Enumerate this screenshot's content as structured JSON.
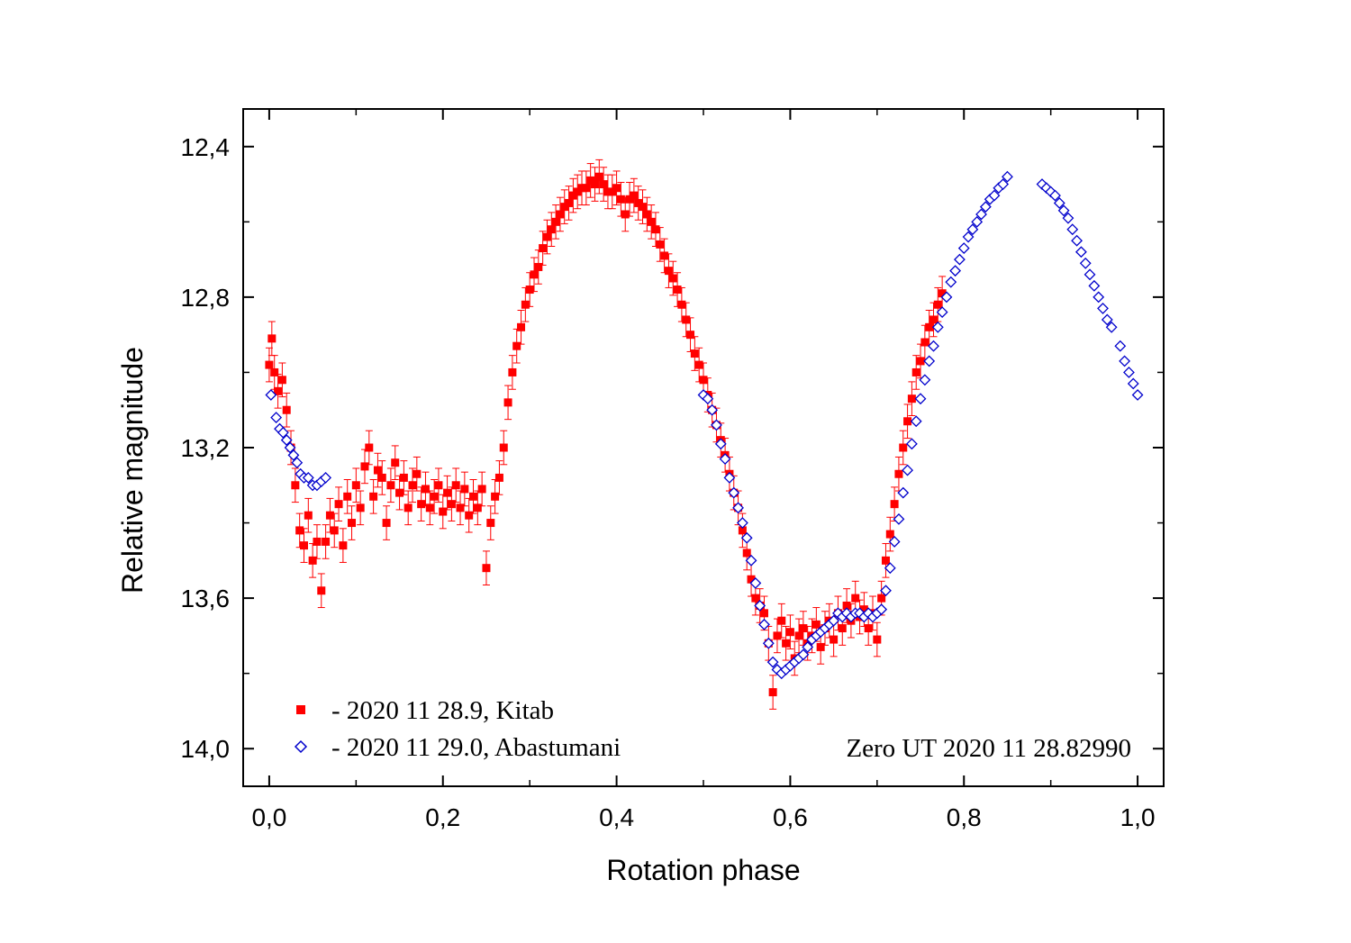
{
  "chart_data": {
    "type": "scatter",
    "xlabel": "Rotation phase",
    "ylabel": "Relative magnitude",
    "xlim": [
      -0.03,
      1.03
    ],
    "ylim": [
      14.1,
      12.3
    ],
    "y_inverted": true,
    "x_ticks": [
      0.0,
      0.2,
      0.4,
      0.6,
      0.8,
      1.0
    ],
    "x_tick_labels": [
      "0,0",
      "0,2",
      "0,4",
      "0,6",
      "0,8",
      "1,0"
    ],
    "y_ticks": [
      12.4,
      12.8,
      13.2,
      13.6,
      14.0
    ],
    "y_tick_labels": [
      "12,4",
      "12,8",
      "13,2",
      "13,6",
      "14,0"
    ],
    "annotation": "Zero UT 2020 11 28.82990",
    "legend_position": "bottom-left",
    "series": [
      {
        "name": "- 2020 11 28.9, Kitab",
        "marker": "filled-square",
        "color": "#ff0000",
        "error_bars": true,
        "points": [
          [
            0.0,
            12.98
          ],
          [
            0.003,
            12.91
          ],
          [
            0.006,
            13.0
          ],
          [
            0.01,
            13.05
          ],
          [
            0.015,
            13.02
          ],
          [
            0.02,
            13.1
          ],
          [
            0.025,
            13.2
          ],
          [
            0.03,
            13.3
          ],
          [
            0.035,
            13.42
          ],
          [
            0.04,
            13.46
          ],
          [
            0.045,
            13.38
          ],
          [
            0.05,
            13.5
          ],
          [
            0.055,
            13.45
          ],
          [
            0.06,
            13.58
          ],
          [
            0.065,
            13.45
          ],
          [
            0.07,
            13.38
          ],
          [
            0.075,
            13.42
          ],
          [
            0.08,
            13.35
          ],
          [
            0.085,
            13.46
          ],
          [
            0.09,
            13.33
          ],
          [
            0.095,
            13.4
          ],
          [
            0.1,
            13.3
          ],
          [
            0.105,
            13.36
          ],
          [
            0.11,
            13.25
          ],
          [
            0.115,
            13.2
          ],
          [
            0.12,
            13.33
          ],
          [
            0.125,
            13.26
          ],
          [
            0.13,
            13.28
          ],
          [
            0.135,
            13.4
          ],
          [
            0.14,
            13.3
          ],
          [
            0.145,
            13.24
          ],
          [
            0.15,
            13.32
          ],
          [
            0.155,
            13.28
          ],
          [
            0.16,
            13.36
          ],
          [
            0.165,
            13.3
          ],
          [
            0.17,
            13.27
          ],
          [
            0.175,
            13.35
          ],
          [
            0.18,
            13.31
          ],
          [
            0.185,
            13.36
          ],
          [
            0.19,
            13.33
          ],
          [
            0.195,
            13.3
          ],
          [
            0.2,
            13.37
          ],
          [
            0.205,
            13.32
          ],
          [
            0.21,
            13.35
          ],
          [
            0.215,
            13.3
          ],
          [
            0.22,
            13.36
          ],
          [
            0.225,
            13.31
          ],
          [
            0.23,
            13.38
          ],
          [
            0.235,
            13.33
          ],
          [
            0.24,
            13.36
          ],
          [
            0.245,
            13.31
          ],
          [
            0.25,
            13.52
          ],
          [
            0.255,
            13.4
          ],
          [
            0.26,
            13.33
          ],
          [
            0.265,
            13.28
          ],
          [
            0.27,
            13.2
          ],
          [
            0.275,
            13.08
          ],
          [
            0.28,
            13.0
          ],
          [
            0.285,
            12.93
          ],
          [
            0.29,
            12.88
          ],
          [
            0.295,
            12.82
          ],
          [
            0.3,
            12.78
          ],
          [
            0.305,
            12.74
          ],
          [
            0.31,
            12.72
          ],
          [
            0.315,
            12.67
          ],
          [
            0.32,
            12.64
          ],
          [
            0.325,
            12.62
          ],
          [
            0.33,
            12.6
          ],
          [
            0.335,
            12.58
          ],
          [
            0.34,
            12.56
          ],
          [
            0.345,
            12.55
          ],
          [
            0.35,
            12.53
          ],
          [
            0.355,
            12.52
          ],
          [
            0.36,
            12.51
          ],
          [
            0.365,
            12.51
          ],
          [
            0.37,
            12.49
          ],
          [
            0.375,
            12.5
          ],
          [
            0.38,
            12.48
          ],
          [
            0.385,
            12.5
          ],
          [
            0.39,
            12.52
          ],
          [
            0.395,
            12.52
          ],
          [
            0.4,
            12.51
          ],
          [
            0.405,
            12.54
          ],
          [
            0.41,
            12.58
          ],
          [
            0.415,
            12.54
          ],
          [
            0.42,
            12.53
          ],
          [
            0.425,
            12.55
          ],
          [
            0.43,
            12.56
          ],
          [
            0.435,
            12.58
          ],
          [
            0.44,
            12.6
          ],
          [
            0.445,
            12.62
          ],
          [
            0.45,
            12.66
          ],
          [
            0.455,
            12.69
          ],
          [
            0.46,
            12.73
          ],
          [
            0.465,
            12.75
          ],
          [
            0.47,
            12.78
          ],
          [
            0.475,
            12.82
          ],
          [
            0.48,
            12.86
          ],
          [
            0.485,
            12.9
          ],
          [
            0.49,
            12.95
          ],
          [
            0.495,
            12.98
          ],
          [
            0.5,
            13.02
          ],
          [
            0.505,
            13.06
          ],
          [
            0.51,
            13.1
          ],
          [
            0.515,
            13.14
          ],
          [
            0.52,
            13.18
          ],
          [
            0.525,
            13.22
          ],
          [
            0.53,
            13.27
          ],
          [
            0.535,
            13.32
          ],
          [
            0.54,
            13.36
          ],
          [
            0.545,
            13.42
          ],
          [
            0.55,
            13.48
          ],
          [
            0.555,
            13.55
          ],
          [
            0.56,
            13.6
          ],
          [
            0.565,
            13.62
          ],
          [
            0.57,
            13.64
          ],
          [
            0.575,
            13.72
          ],
          [
            0.58,
            13.85
          ],
          [
            0.585,
            13.7
          ],
          [
            0.59,
            13.66
          ],
          [
            0.595,
            13.72
          ],
          [
            0.6,
            13.69
          ],
          [
            0.605,
            13.76
          ],
          [
            0.61,
            13.7
          ],
          [
            0.615,
            13.68
          ],
          [
            0.62,
            13.72
          ],
          [
            0.625,
            13.7
          ],
          [
            0.63,
            13.67
          ],
          [
            0.635,
            13.73
          ],
          [
            0.64,
            13.68
          ],
          [
            0.645,
            13.66
          ],
          [
            0.65,
            13.71
          ],
          [
            0.655,
            13.64
          ],
          [
            0.66,
            13.68
          ],
          [
            0.665,
            13.62
          ],
          [
            0.67,
            13.66
          ],
          [
            0.675,
            13.6
          ],
          [
            0.68,
            13.65
          ],
          [
            0.685,
            13.63
          ],
          [
            0.69,
            13.68
          ],
          [
            0.695,
            13.64
          ],
          [
            0.7,
            13.71
          ],
          [
            0.705,
            13.6
          ],
          [
            0.71,
            13.5
          ],
          [
            0.715,
            13.43
          ],
          [
            0.72,
            13.35
          ],
          [
            0.725,
            13.27
          ],
          [
            0.73,
            13.2
          ],
          [
            0.735,
            13.13
          ],
          [
            0.74,
            13.07
          ],
          [
            0.745,
            13.0
          ],
          [
            0.75,
            12.97
          ],
          [
            0.755,
            12.92
          ],
          [
            0.76,
            12.88
          ],
          [
            0.765,
            12.86
          ],
          [
            0.77,
            12.82
          ],
          [
            0.775,
            12.79
          ]
        ]
      },
      {
        "name": "- 2020 11 29.0, Abastumani",
        "marker": "open-diamond",
        "color": "#0000cc",
        "error_bars": false,
        "points": [
          [
            0.002,
            13.06
          ],
          [
            0.008,
            13.12
          ],
          [
            0.012,
            13.15
          ],
          [
            0.016,
            13.16
          ],
          [
            0.02,
            13.18
          ],
          [
            0.024,
            13.2
          ],
          [
            0.028,
            13.22
          ],
          [
            0.032,
            13.24
          ],
          [
            0.036,
            13.27
          ],
          [
            0.04,
            13.28
          ],
          [
            0.045,
            13.28
          ],
          [
            0.05,
            13.3
          ],
          [
            0.055,
            13.3
          ],
          [
            0.06,
            13.29
          ],
          [
            0.065,
            13.28
          ],
          [
            0.5,
            13.06
          ],
          [
            0.505,
            13.07
          ],
          [
            0.51,
            13.1
          ],
          [
            0.515,
            13.14
          ],
          [
            0.52,
            13.19
          ],
          [
            0.525,
            13.23
          ],
          [
            0.53,
            13.28
          ],
          [
            0.535,
            13.32
          ],
          [
            0.54,
            13.36
          ],
          [
            0.545,
            13.4
          ],
          [
            0.55,
            13.44
          ],
          [
            0.555,
            13.5
          ],
          [
            0.56,
            13.56
          ],
          [
            0.565,
            13.62
          ],
          [
            0.57,
            13.67
          ],
          [
            0.575,
            13.72
          ],
          [
            0.58,
            13.77
          ],
          [
            0.585,
            13.79
          ],
          [
            0.59,
            13.8
          ],
          [
            0.595,
            13.79
          ],
          [
            0.6,
            13.78
          ],
          [
            0.605,
            13.77
          ],
          [
            0.61,
            13.76
          ],
          [
            0.615,
            13.75
          ],
          [
            0.62,
            13.73
          ],
          [
            0.625,
            13.71
          ],
          [
            0.63,
            13.7
          ],
          [
            0.635,
            13.69
          ],
          [
            0.64,
            13.68
          ],
          [
            0.645,
            13.67
          ],
          [
            0.65,
            13.66
          ],
          [
            0.655,
            13.64
          ],
          [
            0.66,
            13.65
          ],
          [
            0.665,
            13.64
          ],
          [
            0.67,
            13.65
          ],
          [
            0.675,
            13.64
          ],
          [
            0.68,
            13.64
          ],
          [
            0.685,
            13.65
          ],
          [
            0.69,
            13.64
          ],
          [
            0.695,
            13.65
          ],
          [
            0.7,
            13.64
          ],
          [
            0.705,
            13.63
          ],
          [
            0.71,
            13.58
          ],
          [
            0.715,
            13.52
          ],
          [
            0.72,
            13.45
          ],
          [
            0.725,
            13.39
          ],
          [
            0.73,
            13.32
          ],
          [
            0.735,
            13.26
          ],
          [
            0.74,
            13.19
          ],
          [
            0.745,
            13.13
          ],
          [
            0.75,
            13.07
          ],
          [
            0.755,
            13.02
          ],
          [
            0.76,
            12.97
          ],
          [
            0.765,
            12.93
          ],
          [
            0.77,
            12.88
          ],
          [
            0.775,
            12.84
          ],
          [
            0.78,
            12.8
          ],
          [
            0.785,
            12.76
          ],
          [
            0.79,
            12.73
          ],
          [
            0.795,
            12.7
          ],
          [
            0.8,
            12.67
          ],
          [
            0.805,
            12.64
          ],
          [
            0.81,
            12.62
          ],
          [
            0.815,
            12.6
          ],
          [
            0.82,
            12.58
          ],
          [
            0.825,
            12.56
          ],
          [
            0.83,
            12.54
          ],
          [
            0.835,
            12.53
          ],
          [
            0.84,
            12.51
          ],
          [
            0.845,
            12.5
          ],
          [
            0.85,
            12.48
          ],
          [
            0.89,
            12.5
          ],
          [
            0.895,
            12.51
          ],
          [
            0.9,
            12.52
          ],
          [
            0.905,
            12.53
          ],
          [
            0.91,
            12.55
          ],
          [
            0.915,
            12.57
          ],
          [
            0.92,
            12.59
          ],
          [
            0.925,
            12.62
          ],
          [
            0.93,
            12.65
          ],
          [
            0.935,
            12.68
          ],
          [
            0.94,
            12.71
          ],
          [
            0.945,
            12.74
          ],
          [
            0.95,
            12.77
          ],
          [
            0.955,
            12.8
          ],
          [
            0.96,
            12.83
          ],
          [
            0.965,
            12.86
          ],
          [
            0.97,
            12.88
          ],
          [
            0.98,
            12.93
          ],
          [
            0.985,
            12.97
          ],
          [
            0.99,
            13.0
          ],
          [
            0.995,
            13.03
          ],
          [
            1.0,
            13.06
          ]
        ]
      }
    ]
  }
}
